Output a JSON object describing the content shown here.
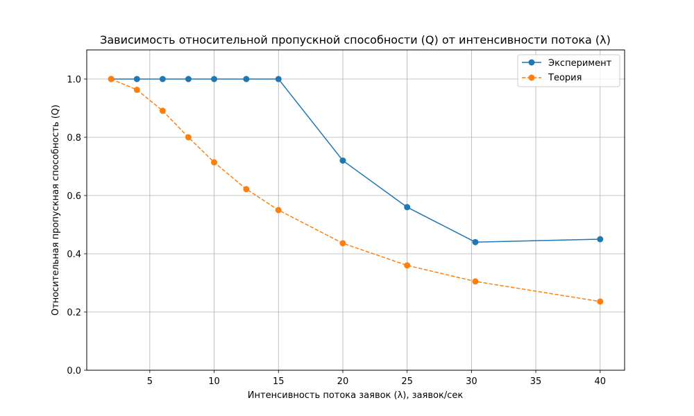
{
  "chart_data": {
    "type": "line",
    "title": "Зависимость относительной пропускной способности (Q) от интенсивности потока (λ)",
    "xlabel": "Интенсивность потока заявок (λ), заявок/сек",
    "ylabel": "Относительная пропускная способность (Q)",
    "xlim": [
      0.1,
      41.9
    ],
    "ylim": [
      0,
      1.1
    ],
    "xticks": [
      5,
      10,
      15,
      20,
      25,
      30,
      35,
      40
    ],
    "xtick_labels": [
      "5",
      "10",
      "15",
      "20",
      "25",
      "30",
      "35",
      "40"
    ],
    "yticks": [
      0.0,
      0.2,
      0.4,
      0.6,
      0.8,
      1.0
    ],
    "ytick_labels": [
      "0.0",
      "0.2",
      "0.4",
      "0.6",
      "0.8",
      "1.0"
    ],
    "grid": true,
    "legend_position": "top-right",
    "series": [
      {
        "name": "Эксперимент",
        "color": "#1f77b4",
        "linestyle": "solid",
        "marker": "circle",
        "x": [
          2,
          4,
          6,
          8,
          10,
          12.5,
          15,
          20,
          25,
          30.3,
          40
        ],
        "y": [
          1.0,
          1.0,
          1.0,
          1.0,
          1.0,
          1.0,
          1.0,
          0.72,
          0.56,
          0.44,
          0.45
        ]
      },
      {
        "name": "Теория",
        "color": "#ff7f0e",
        "linestyle": "dashed",
        "marker": "circle",
        "x": [
          2,
          4,
          6,
          8,
          10,
          12.5,
          15,
          20,
          25,
          30.3,
          40
        ],
        "y": [
          1.0,
          0.963,
          0.891,
          0.8,
          0.714,
          0.622,
          0.55,
          0.436,
          0.36,
          0.305,
          0.236
        ]
      }
    ]
  }
}
